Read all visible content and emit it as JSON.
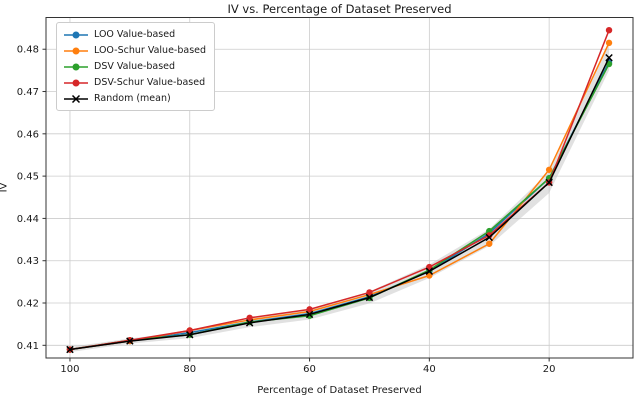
{
  "title": "IV vs. Percentage of Dataset Preserved",
  "chart_data": {
    "type": "line",
    "title": "IV vs. Percentage of Dataset Preserved",
    "xlabel": "Percentage of Dataset Preserved",
    "ylabel": "IV",
    "grid": true,
    "legend_position": "upper-left",
    "x": [
      100,
      90,
      80,
      70,
      60,
      50,
      40,
      30,
      20,
      10
    ],
    "x_axis": {
      "ticks": [
        100,
        80,
        60,
        40,
        20
      ],
      "reversed": true,
      "lim": [
        104,
        6
      ]
    },
    "y_axis": {
      "ticks": [
        0.41,
        0.42,
        0.43,
        0.44,
        0.45,
        0.46,
        0.47,
        0.48
      ],
      "lim": [
        0.407,
        0.4875
      ],
      "tick_decimals": 2
    },
    "series": [
      {
        "name": "LOO Value-based",
        "color": "#1f77b4",
        "marker": "circle",
        "values": [
          0.409,
          0.411,
          0.413,
          0.4155,
          0.4175,
          0.4215,
          0.4275,
          0.4365,
          0.4495,
          0.477
        ]
      },
      {
        "name": "LOO-Schur Value-based",
        "color": "#ff7f0e",
        "marker": "circle",
        "values": [
          0.409,
          0.411,
          0.4135,
          0.416,
          0.418,
          0.422,
          0.4265,
          0.434,
          0.4515,
          0.4815
        ]
      },
      {
        "name": "DSV Value-based",
        "color": "#2ca02c",
        "marker": "circle",
        "values": [
          0.409,
          0.4112,
          0.4125,
          0.4155,
          0.417,
          0.4212,
          0.4278,
          0.437,
          0.4495,
          0.4765
        ]
      },
      {
        "name": "DSV-Schur Value-based",
        "color": "#d62728",
        "marker": "circle",
        "values": [
          0.409,
          0.4112,
          0.4135,
          0.4165,
          0.4185,
          0.4225,
          0.4285,
          0.436,
          0.4485,
          0.4845
        ]
      },
      {
        "name": "Random (mean)",
        "color": "#000000",
        "marker": "x",
        "values": [
          0.409,
          0.411,
          0.4125,
          0.4153,
          0.4173,
          0.4213,
          0.4275,
          0.4355,
          0.4485,
          0.478
        ],
        "band": {
          "color": "#bdbdbd",
          "opacity": 0.45,
          "half_width": [
            0.0006,
            0.0006,
            0.0008,
            0.001,
            0.0012,
            0.0014,
            0.0016,
            0.002,
            0.0025,
            0.003
          ]
        }
      }
    ]
  }
}
